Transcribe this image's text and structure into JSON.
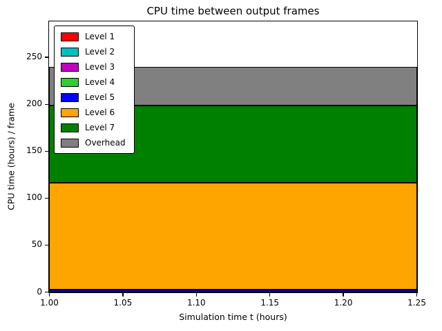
{
  "chart_data": {
    "type": "area",
    "stacked": true,
    "title": "CPU time between output frames",
    "xlabel": "Simulation time t (hours)",
    "ylabel": "CPU time (hours) / frame",
    "xlim": [
      1.0,
      1.25
    ],
    "ylim": [
      0,
      288
    ],
    "x": [
      1.0,
      1.25
    ],
    "x_ticks": [
      "1.00",
      "1.05",
      "1.10",
      "1.15",
      "1.20",
      "1.25"
    ],
    "x_tick_values": [
      1.0,
      1.05,
      1.1,
      1.15,
      1.2,
      1.25
    ],
    "y_ticks": [
      "0",
      "50",
      "100",
      "150",
      "200",
      "250"
    ],
    "y_tick_values": [
      0,
      50,
      100,
      150,
      200,
      250
    ],
    "grid": false,
    "legend_position": "upper left",
    "series": [
      {
        "name": "Level 1",
        "color": "#ff0000",
        "values": [
          0,
          0
        ]
      },
      {
        "name": "Level 2",
        "color": "#00bfbf",
        "values": [
          0,
          0
        ]
      },
      {
        "name": "Level 3",
        "color": "#bf00bf",
        "values": [
          0,
          0
        ]
      },
      {
        "name": "Level 4",
        "color": "#32cd32",
        "values": [
          0,
          0
        ]
      },
      {
        "name": "Level 5",
        "color": "#0000ff",
        "values": [
          3,
          3
        ]
      },
      {
        "name": "Level 6",
        "color": "#ffa500",
        "values": [
          114,
          114
        ]
      },
      {
        "name": "Level 7",
        "color": "#008000",
        "values": [
          82,
          82
        ]
      },
      {
        "name": "Overhead",
        "color": "#808080",
        "values": [
          41,
          41
        ]
      }
    ]
  }
}
